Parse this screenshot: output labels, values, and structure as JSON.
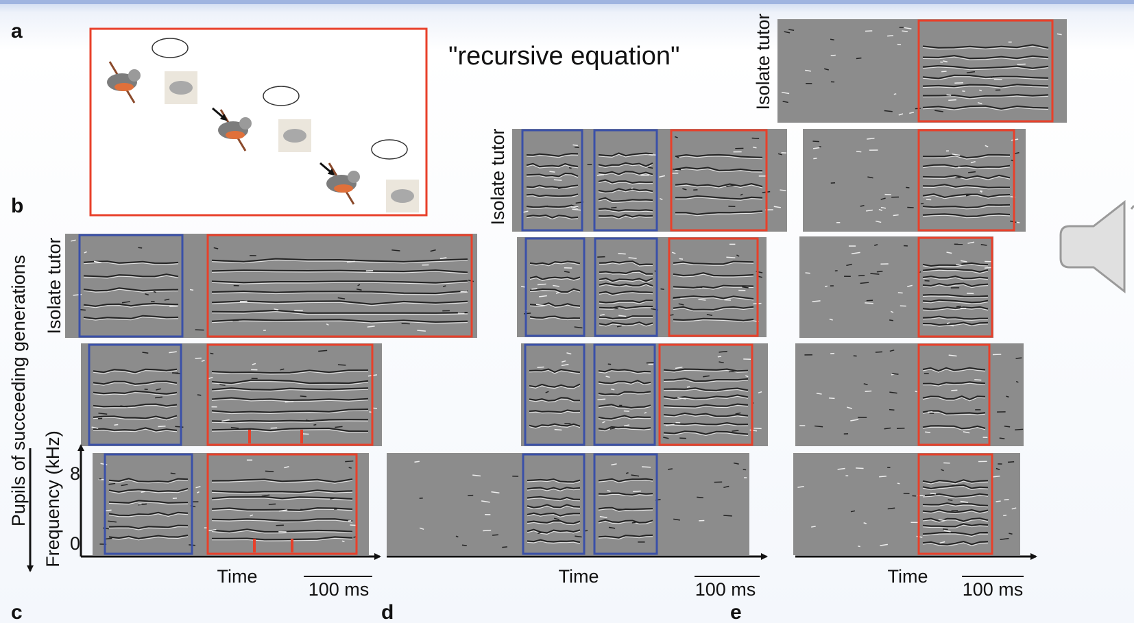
{
  "header": {
    "label_a": "a",
    "label_b": "b",
    "label_c": "c",
    "label_d": "d",
    "label_e": "e",
    "quote": "\"recursive equation\""
  },
  "panel_b": {
    "row_label": "Isolate tutor",
    "side_label": "Pupils of succeeding generations",
    "y_axis_label": "Frequency (kHz)",
    "y_ticks": [
      8,
      0
    ],
    "x_axis_label": "Time",
    "scale_bar": "100 ms"
  },
  "panel_d": {
    "row_label": "Isolate tutor",
    "x_axis_label": "Time",
    "scale_bar": "100 ms"
  },
  "panel_e": {
    "row_label": "Isolate tutor",
    "x_axis_label": "Time",
    "scale_bar": "100 ms"
  }
}
